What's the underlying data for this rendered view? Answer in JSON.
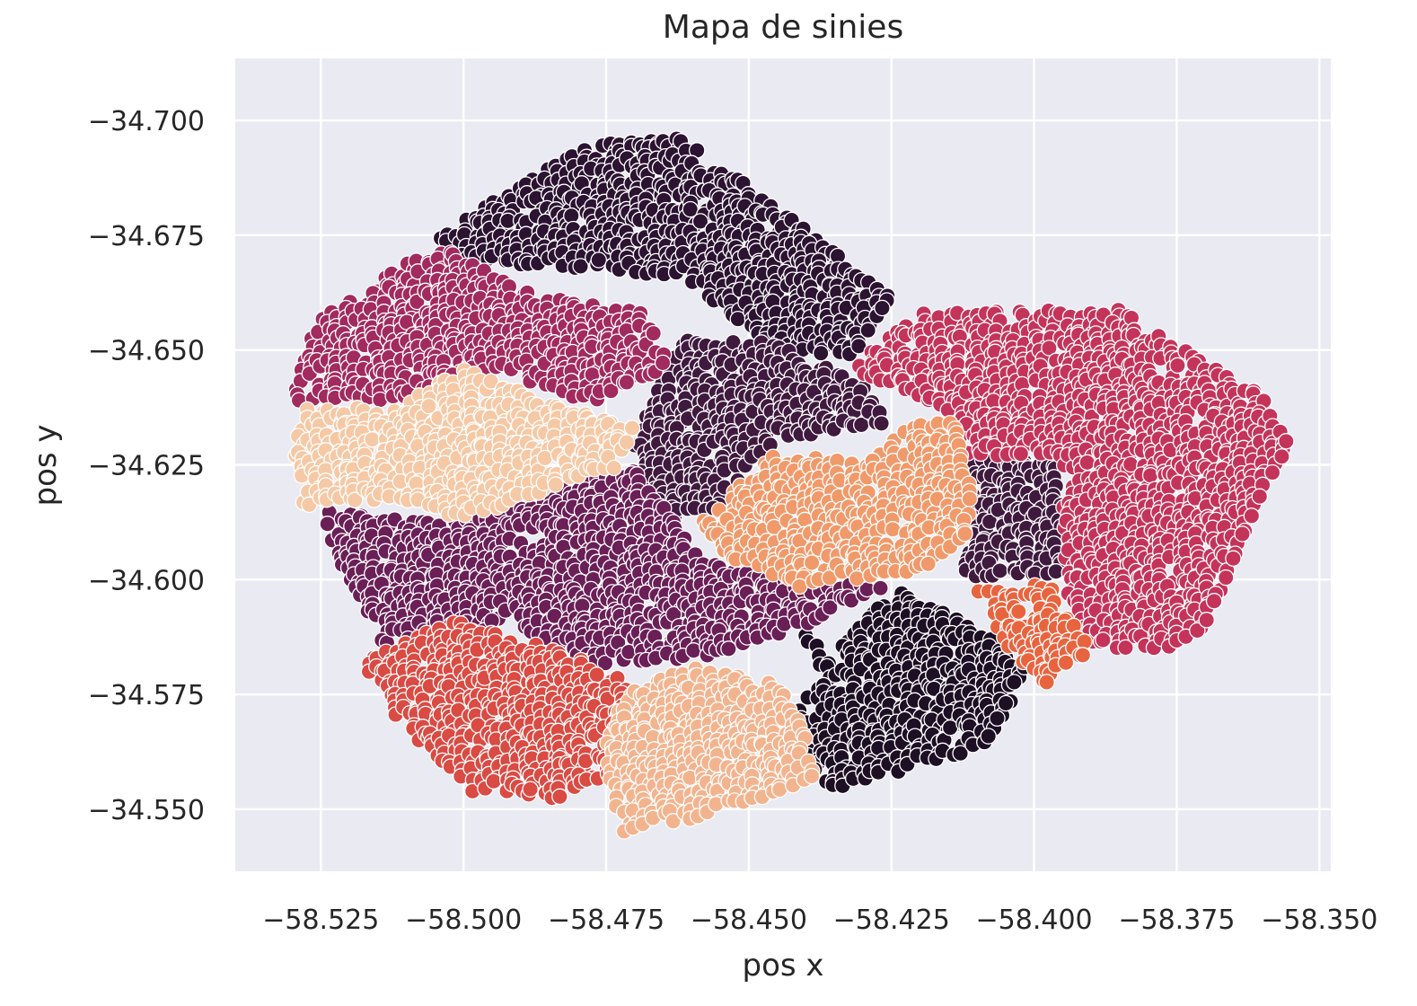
{
  "chart_data": {
    "type": "scatter",
    "title": "Mapa de sinies",
    "xlabel": "pos x",
    "ylabel": "pos y",
    "xlim": [
      -58.54,
      -58.348
    ],
    "ylim": [
      -34.5365,
      -34.7135
    ],
    "x_ticks": [
      -58.525,
      -58.5,
      -58.475,
      -58.45,
      -58.425,
      -58.4,
      -58.375,
      -58.35
    ],
    "x_tick_labels": [
      "−58.525",
      "−58.500",
      "−58.475",
      "−58.450",
      "−58.425",
      "−58.400",
      "−58.375",
      "−58.350"
    ],
    "y_ticks": [
      -34.7,
      -34.675,
      -34.65,
      -34.625,
      -34.6,
      -34.575,
      -34.55
    ],
    "y_tick_labels": [
      "−34.700",
      "−34.675",
      "−34.650",
      "−34.625",
      "−34.600",
      "−34.575",
      "−34.550"
    ],
    "grid": true,
    "legend": "none",
    "background_color": "#eaeaf2",
    "grid_color": "#ffffff",
    "marker_edge_color": "#ffffff",
    "point_spacing": 0.0016,
    "clusters": [
      {
        "color": "#2b1331",
        "polygon": [
          [
            -58.506,
            -34.674
          ],
          [
            -58.478,
            -34.695
          ],
          [
            -58.462,
            -34.697
          ],
          [
            -58.425,
            -34.662
          ],
          [
            -58.432,
            -34.648
          ],
          [
            -58.446,
            -34.651
          ],
          [
            -58.462,
            -34.666
          ],
          [
            -58.482,
            -34.668
          ],
          [
            -58.496,
            -34.668
          ]
        ]
      },
      {
        "color": "#3f1a3e",
        "polygon": [
          [
            -58.47,
            -34.634
          ],
          [
            -58.462,
            -34.652
          ],
          [
            -58.445,
            -34.652
          ],
          [
            -58.43,
            -34.642
          ],
          [
            -58.425,
            -34.634
          ],
          [
            -58.445,
            -34.63
          ],
          [
            -58.456,
            -34.615
          ],
          [
            -58.47,
            -34.612
          ]
        ]
      },
      {
        "color": "#3f1a3e",
        "polygon": [
          [
            -58.412,
            -34.627
          ],
          [
            -58.395,
            -34.626
          ],
          [
            -58.395,
            -34.6
          ],
          [
            -58.412,
            -34.6
          ]
        ]
      },
      {
        "color": "#1d0f24",
        "polygon": [
          [
            -58.442,
            -34.591
          ],
          [
            -58.436,
            -34.583
          ],
          [
            -58.425,
            -34.598
          ],
          [
            -58.415,
            -34.593
          ],
          [
            -58.4,
            -34.581
          ],
          [
            -58.408,
            -34.564
          ],
          [
            -58.435,
            -34.554
          ],
          [
            -58.446,
            -34.569
          ],
          [
            -58.437,
            -34.577
          ]
        ]
      },
      {
        "color": "#a12a5e",
        "polygon": [
          [
            -58.53,
            -34.639
          ],
          [
            -58.526,
            -34.656
          ],
          [
            -58.505,
            -34.673
          ],
          [
            -58.488,
            -34.662
          ],
          [
            -58.468,
            -34.658
          ],
          [
            -58.463,
            -34.646
          ],
          [
            -58.478,
            -34.638
          ],
          [
            -58.494,
            -34.646
          ],
          [
            -58.512,
            -34.639
          ]
        ]
      },
      {
        "color": "#6a1f56",
        "polygon": [
          [
            -58.525,
            -34.615
          ],
          [
            -58.503,
            -34.612
          ],
          [
            -58.488,
            -34.619
          ],
          [
            -58.47,
            -34.624
          ],
          [
            -58.463,
            -34.613
          ],
          [
            -58.458,
            -34.604
          ],
          [
            -58.445,
            -34.6
          ],
          [
            -58.425,
            -34.599
          ],
          [
            -58.44,
            -34.59
          ],
          [
            -58.464,
            -34.581
          ],
          [
            -58.478,
            -34.581
          ],
          [
            -58.49,
            -34.59
          ],
          [
            -58.514,
            -34.585
          ],
          [
            -58.522,
            -34.605
          ]
        ]
      },
      {
        "color": "#c4345a",
        "polygon": [
          [
            -58.432,
            -34.646
          ],
          [
            -58.42,
            -34.658
          ],
          [
            -58.385,
            -34.659
          ],
          [
            -58.36,
            -34.64
          ],
          [
            -58.355,
            -34.63
          ],
          [
            -58.362,
            -34.612
          ],
          [
            -58.372,
            -34.585
          ],
          [
            -58.392,
            -34.585
          ],
          [
            -58.395,
            -34.6
          ],
          [
            -58.395,
            -34.627
          ],
          [
            -58.412,
            -34.627
          ],
          [
            -58.414,
            -34.636
          ]
        ]
      },
      {
        "color": "#d94b43",
        "polygon": [
          [
            -58.518,
            -34.582
          ],
          [
            -58.502,
            -34.591
          ],
          [
            -58.482,
            -34.584
          ],
          [
            -58.472,
            -34.578
          ],
          [
            -58.467,
            -34.562
          ],
          [
            -58.484,
            -34.552
          ],
          [
            -58.498,
            -34.553
          ],
          [
            -58.51,
            -34.567
          ]
        ]
      },
      {
        "color": "#e8643f",
        "polygon": [
          [
            -58.41,
            -34.598
          ],
          [
            -58.398,
            -34.6
          ],
          [
            -58.39,
            -34.585
          ],
          [
            -58.398,
            -34.577
          ],
          [
            -58.405,
            -34.586
          ]
        ]
      },
      {
        "color": "#f09a6b",
        "polygon": [
          [
            -58.458,
            -34.613
          ],
          [
            -58.446,
            -34.627
          ],
          [
            -58.428,
            -34.626
          ],
          [
            -58.421,
            -34.635
          ],
          [
            -58.413,
            -34.634
          ],
          [
            -58.41,
            -34.61
          ],
          [
            -58.42,
            -34.602
          ],
          [
            -58.44,
            -34.598
          ],
          [
            -58.455,
            -34.605
          ]
        ]
      },
      {
        "color": "#f2b48f",
        "polygon": [
          [
            -58.472,
            -34.575
          ],
          [
            -58.46,
            -34.581
          ],
          [
            -58.445,
            -34.578
          ],
          [
            -58.44,
            -34.566
          ],
          [
            -58.438,
            -34.557
          ],
          [
            -58.458,
            -34.548
          ],
          [
            -58.472,
            -34.545
          ],
          [
            -58.476,
            -34.562
          ]
        ]
      },
      {
        "color": "#f5c9a6",
        "polygon": [
          [
            -58.53,
            -34.628
          ],
          [
            -58.528,
            -34.638
          ],
          [
            -58.512,
            -34.637
          ],
          [
            -58.5,
            -34.646
          ],
          [
            -58.482,
            -34.637
          ],
          [
            -58.47,
            -34.634
          ],
          [
            -58.473,
            -34.624
          ],
          [
            -58.488,
            -34.618
          ],
          [
            -58.5,
            -34.613
          ],
          [
            -58.512,
            -34.618
          ],
          [
            -58.528,
            -34.615
          ]
        ]
      }
    ]
  }
}
